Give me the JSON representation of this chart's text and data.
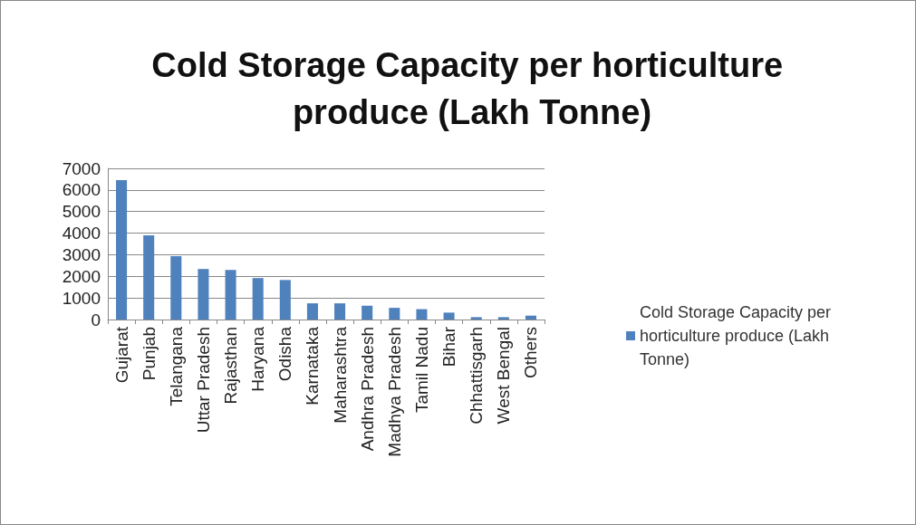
{
  "chart_data": {
    "type": "bar",
    "title": "Cold Storage Capacity per horticulture produce (Lakh Tonne)",
    "categories": [
      "Gujarat",
      "Punjab",
      "Telangana",
      "Uttar Pradesh",
      "Rajasthan",
      "Haryana",
      "Odisha",
      "Karnataka",
      "Maharashtra",
      "Andhra Pradesh",
      "Madhya Pradesh",
      "Tamil Nadu",
      "Bihar",
      "Chhattisgarh",
      "West Bengal",
      "Others"
    ],
    "series": [
      {
        "name": "Cold Storage Capacity per horticulture produce (Lakh Tonne)",
        "color": "#4f81bd",
        "values": [
          6450,
          3900,
          2930,
          2340,
          2290,
          1920,
          1830,
          750,
          750,
          640,
          540,
          480,
          320,
          110,
          110,
          180
        ]
      }
    ],
    "ylim": [
      0,
      7000
    ],
    "yticks": [
      0,
      1000,
      2000,
      3000,
      4000,
      5000,
      6000,
      7000
    ],
    "grid": "y",
    "legend": "right"
  }
}
